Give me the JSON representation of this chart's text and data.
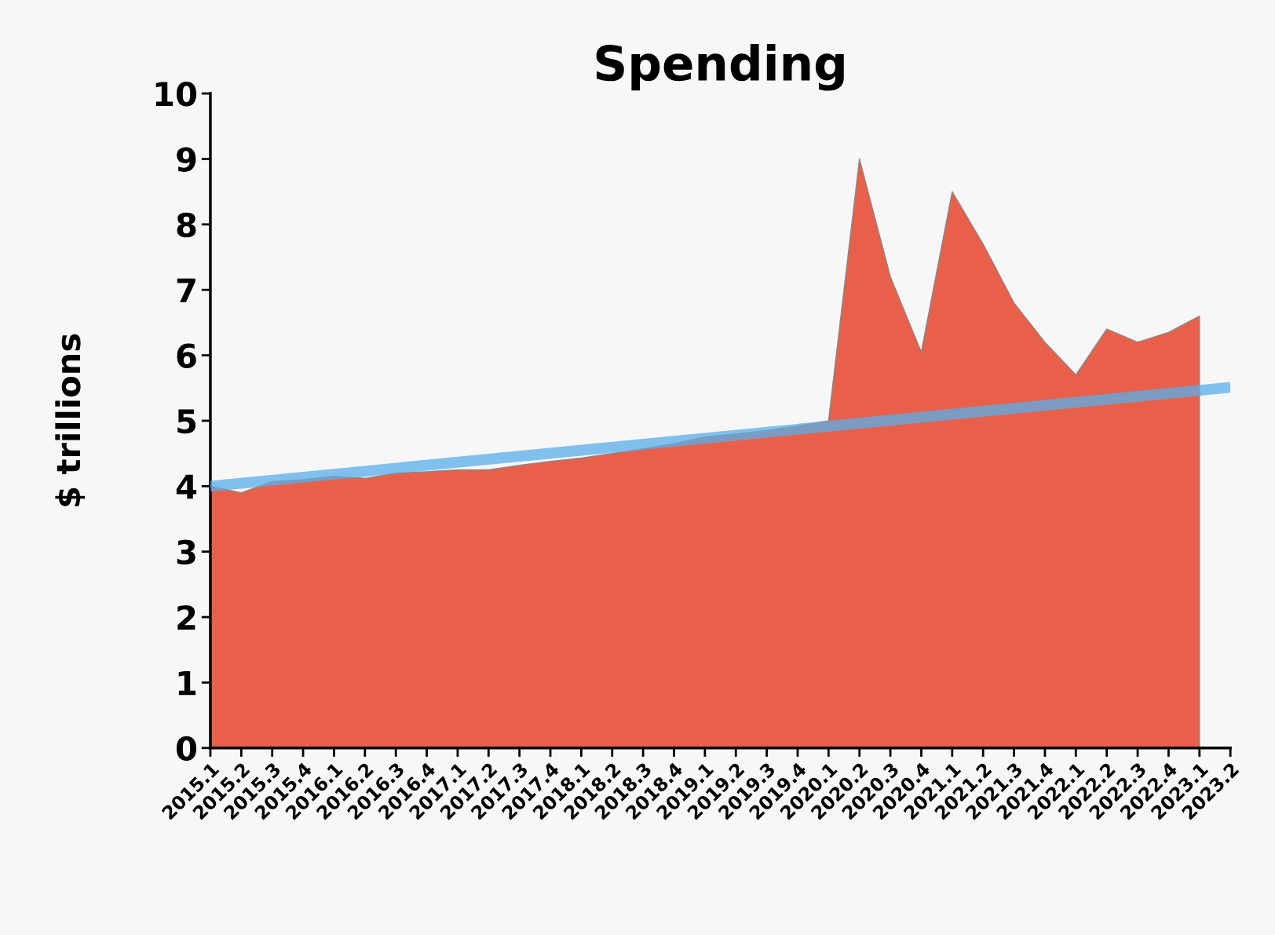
{
  "chart_data": {
    "type": "area",
    "title": "Spending",
    "ylabel": "$ trillions",
    "categories": [
      "2015.1",
      "2015.2",
      "2015.3",
      "2015.4",
      "2016.1",
      "2016.2",
      "2016.3",
      "2016.4",
      "2017.1",
      "2017.2",
      "2017.3",
      "2017.4",
      "2018.1",
      "2018.2",
      "2018.3",
      "2018.4",
      "2019.1",
      "2019.2",
      "2019.3",
      "2019.4",
      "2020.1",
      "2020.2",
      "2020.3",
      "2020.4",
      "2021.1",
      "2021.2",
      "2021.3",
      "2021.4",
      "2022.1",
      "2022.2",
      "2022.3",
      "2022.4",
      "2023.1",
      "2023.2"
    ],
    "series": [
      {
        "color": "#e8604a",
        "values": [
          4.0,
          3.9,
          4.07,
          4.1,
          4.15,
          4.12,
          4.2,
          4.22,
          4.25,
          4.25,
          4.32,
          4.38,
          4.43,
          4.5,
          4.57,
          4.65,
          4.75,
          4.8,
          4.85,
          4.92,
          5.0,
          9.0,
          7.2,
          6.05,
          8.5,
          7.7,
          6.8,
          6.2,
          5.7,
          6.4,
          6.2,
          6.35,
          6.6,
          null
        ]
      },
      {
        "type": "line",
        "color": "#5aaee8",
        "x": [
          "2015.1",
          "2023.2"
        ],
        "values": [
          4.0,
          5.51
        ]
      }
    ],
    "ylim": [
      0,
      10
    ],
    "yticks": [
      0,
      1,
      2,
      3,
      4,
      5,
      6,
      7,
      8,
      9,
      10
    ],
    "grid": false,
    "legend": false
  }
}
